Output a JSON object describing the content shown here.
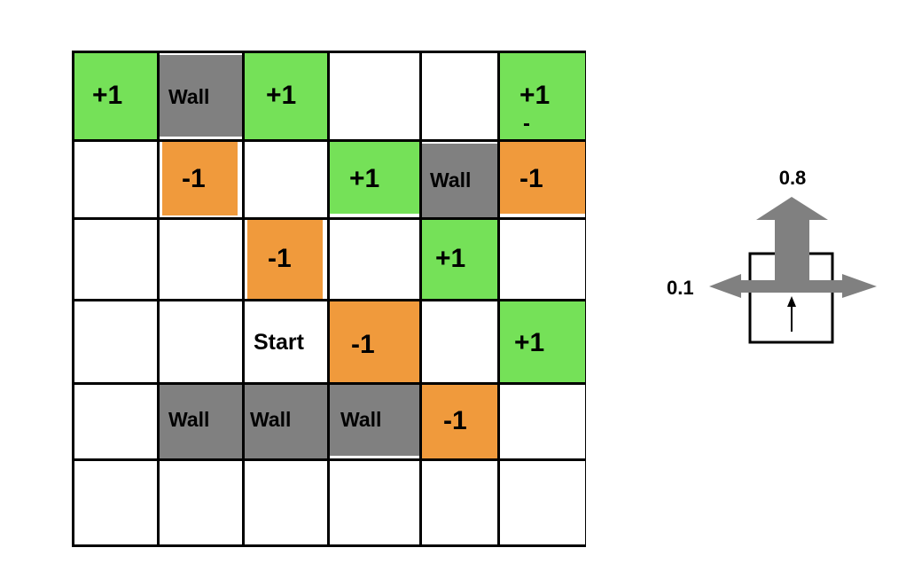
{
  "colors": {
    "reward": "#75e158",
    "penalty": "#f09a3c",
    "wall": "#808080",
    "empty": "#ffffff",
    "arrow": "#808080"
  },
  "grid": {
    "rows": [
      [
        {
          "type": "reward",
          "label": "+1"
        },
        {
          "type": "wall",
          "label": "Wall"
        },
        {
          "type": "reward",
          "label": "+1"
        },
        {
          "type": "empty",
          "label": ""
        },
        {
          "type": "empty",
          "label": ""
        },
        {
          "type": "reward",
          "label": "+1",
          "mark": "-"
        }
      ],
      [
        {
          "type": "empty",
          "label": ""
        },
        {
          "type": "penalty",
          "label": "-1"
        },
        {
          "type": "empty",
          "label": ""
        },
        {
          "type": "reward",
          "label": "+1"
        },
        {
          "type": "wall",
          "label": "Wall"
        },
        {
          "type": "penalty",
          "label": "-1"
        }
      ],
      [
        {
          "type": "empty",
          "label": ""
        },
        {
          "type": "empty",
          "label": ""
        },
        {
          "type": "penalty",
          "label": "-1"
        },
        {
          "type": "empty",
          "label": ""
        },
        {
          "type": "reward",
          "label": "+1"
        },
        {
          "type": "empty",
          "label": ""
        }
      ],
      [
        {
          "type": "empty",
          "label": ""
        },
        {
          "type": "empty",
          "label": ""
        },
        {
          "type": "start",
          "label": "Start"
        },
        {
          "type": "penalty",
          "label": "-1"
        },
        {
          "type": "empty",
          "label": ""
        },
        {
          "type": "reward",
          "label": "+1"
        }
      ],
      [
        {
          "type": "empty",
          "label": ""
        },
        {
          "type": "wall",
          "label": "Wall"
        },
        {
          "type": "wall",
          "label": "Wall"
        },
        {
          "type": "wall",
          "label": "Wall"
        },
        {
          "type": "penalty",
          "label": "-1"
        },
        {
          "type": "empty",
          "label": ""
        }
      ],
      [
        {
          "type": "empty",
          "label": ""
        },
        {
          "type": "empty",
          "label": ""
        },
        {
          "type": "empty",
          "label": ""
        },
        {
          "type": "empty",
          "label": ""
        },
        {
          "type": "empty",
          "label": ""
        },
        {
          "type": "empty",
          "label": ""
        }
      ]
    ]
  },
  "legend": {
    "forward_prob": "0.8",
    "side_prob": "0.1"
  }
}
